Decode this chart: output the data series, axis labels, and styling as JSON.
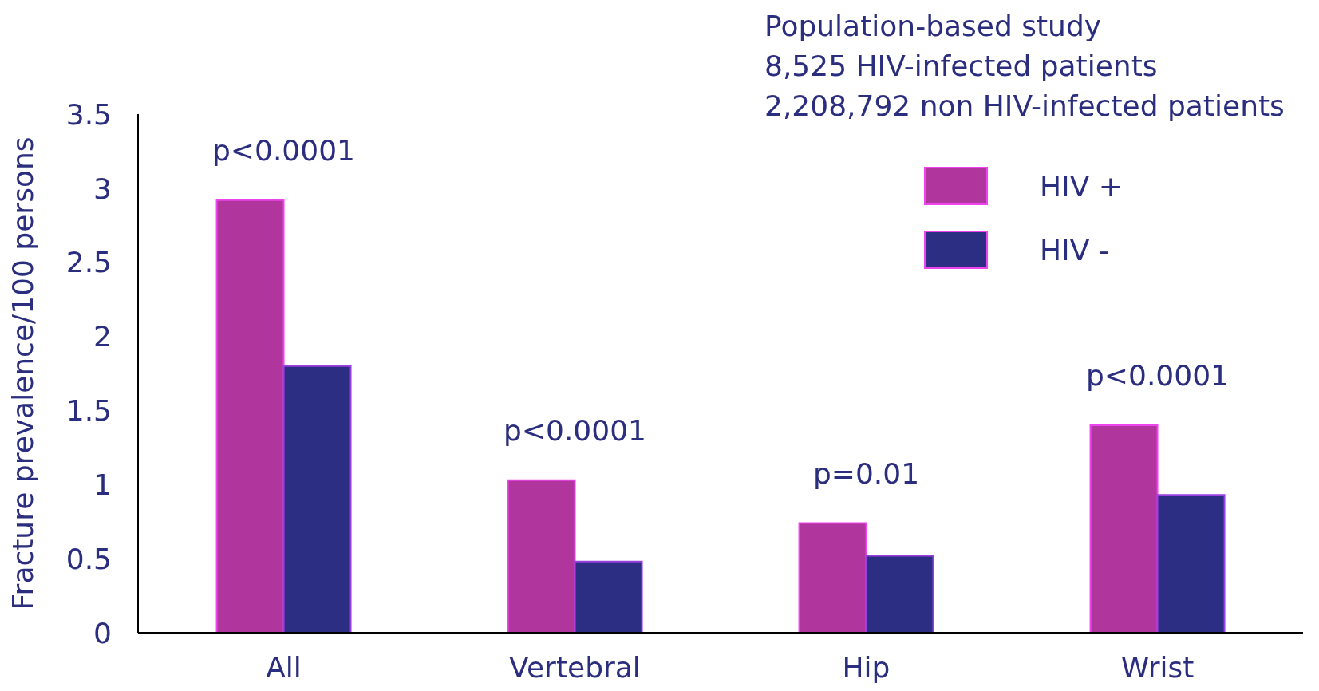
{
  "chart_data": {
    "type": "bar",
    "categories": [
      "All",
      "Vertebral",
      "Hip",
      "Wrist"
    ],
    "series": [
      {
        "name": "HIV +",
        "color": "#b0359c",
        "values": [
          2.92,
          1.03,
          0.74,
          1.4
        ]
      },
      {
        "name": "HIV -",
        "color": "#2b2e82",
        "values": [
          1.8,
          0.48,
          0.52,
          0.93
        ]
      }
    ],
    "ylabel": "Fracture prevalence/100 persons",
    "ylim": [
      0,
      3.5
    ],
    "yticks": [
      0,
      0.5,
      1,
      1.5,
      2,
      2.5,
      3,
      3.5
    ],
    "grid": false,
    "legend": "top right",
    "annotations": [
      "Population-based study",
      "8,525 HIV-infected patients",
      "2,208,792 non HIV-infected patients",
      "p<0.0001",
      "p<0.0001",
      "p=0.01",
      "p<0.0001"
    ]
  }
}
